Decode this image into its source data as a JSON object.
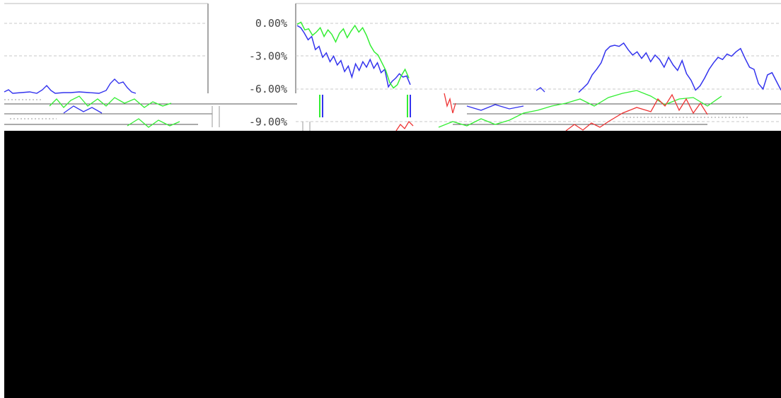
{
  "chart_data": {
    "type": "line",
    "yaxis": {
      "ticks": [
        "0.00%",
        "-3.00%",
        "-6.00%",
        "-9.00%"
      ],
      "tick_values": [
        0,
        -3,
        -6,
        -9
      ]
    },
    "series": [
      {
        "color": "#3333ee",
        "values": [
          -0.2,
          -0.4,
          -0.9,
          -1.5,
          -1.2,
          -2.4,
          -2.1,
          -3.1,
          -2.7,
          -3.5,
          -3.0,
          -3.8,
          -3.4,
          -4.4,
          -3.9,
          -4.9,
          -3.7,
          -4.3,
          -3.5,
          -4.0,
          -3.3,
          -4.1,
          -3.6,
          -4.5,
          -4.2,
          -5.8,
          -5.3,
          -5.0,
          -4.6,
          -4.9,
          -4.8,
          -5.6
        ]
      },
      {
        "color": "#33ee33",
        "values": [
          -0.1,
          0.1,
          -0.6,
          -0.5,
          -1.1,
          -0.8,
          -0.4,
          -1.2,
          -0.6,
          -1.0,
          -1.7,
          -0.9,
          -0.5,
          -1.3,
          -0.7,
          -0.2,
          -0.8,
          -0.4,
          -1.1,
          -2.0,
          -2.6,
          -2.9,
          -3.6,
          -4.3,
          -5.4,
          -5.9,
          -5.6,
          -4.8,
          -4.2,
          -5.0
        ]
      },
      {
        "color": "#3333ee",
        "values": [
          -6.3,
          -5.9,
          -5.5,
          -4.7,
          -4.2,
          -3.6,
          -2.5,
          -2.1,
          -2.0,
          -2.1,
          -1.8,
          -2.4,
          -2.9,
          -2.6,
          -3.2,
          -2.7,
          -3.5,
          -2.9,
          -3.3,
          -4.0,
          -3.1,
          -3.8,
          -4.3,
          -3.4,
          -4.6,
          -5.2,
          -6.1,
          -5.7,
          -5.0,
          -4.2,
          -3.6,
          -3.1,
          -3.3,
          -2.8,
          -3.0,
          -2.6,
          -2.3,
          -3.2,
          -4.0,
          -4.2,
          -5.5,
          -6.0,
          -4.7,
          -4.5,
          -5.3,
          -6.1
        ]
      }
    ]
  }
}
